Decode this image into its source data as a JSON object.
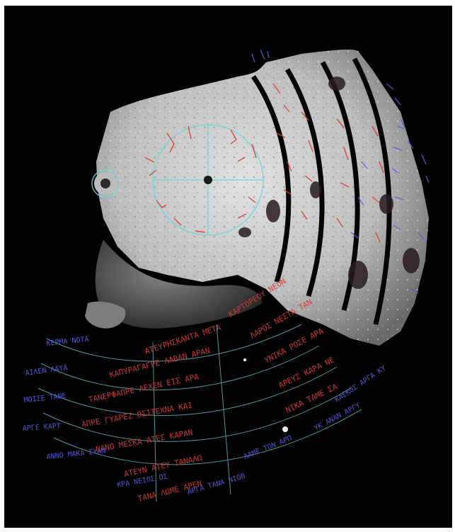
{
  "image": {
    "subject": "fragment-photo-with-inscription-overlay",
    "colors": {
      "background": "#020203",
      "frame": "#ffffff",
      "fragment_light": "#d8d8d8",
      "fragment_mid": "#9a9a9a",
      "ink_red": "#d63a3a",
      "ink_blue": "#5a5ad6",
      "ink_cyan": "#6fd6d6"
    }
  }
}
